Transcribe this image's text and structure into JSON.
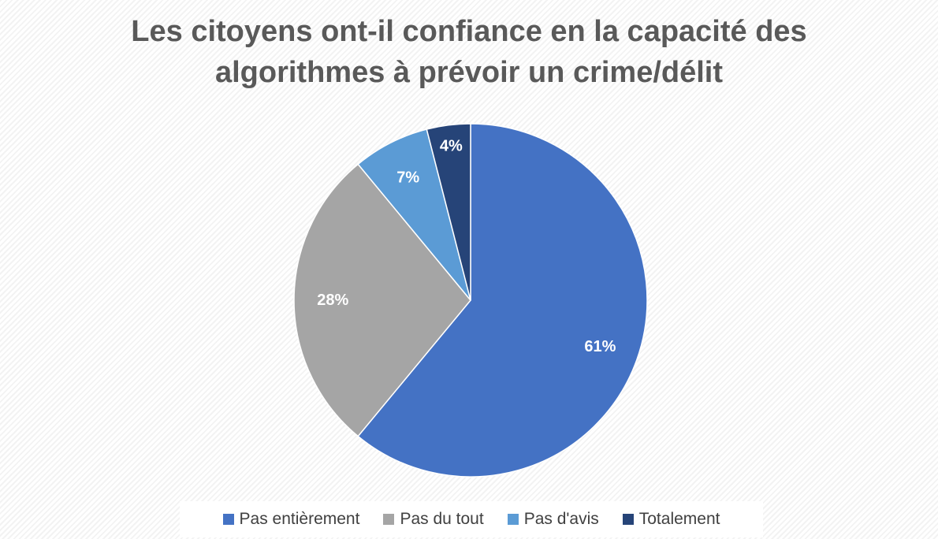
{
  "chart_data": {
    "type": "pie",
    "title": "Les citoyens ont-il confiance en la capacité des algorithmes à prévoir un crime/délit",
    "title_lines": [
      "Les citoyens ont-il confiance en la capacité des",
      "algorithmes à prévoir un crime/délit"
    ],
    "categories": [
      "Pas entièrement",
      "Pas du tout",
      "Pas d'avis",
      "Totalement"
    ],
    "values": [
      61,
      28,
      7,
      4
    ],
    "data_labels": [
      "61%",
      "28%",
      "7%",
      "4%"
    ],
    "colors": [
      "#4472c4",
      "#a5a5a5",
      "#5b9bd5",
      "#264478"
    ],
    "legend_position": "bottom"
  }
}
